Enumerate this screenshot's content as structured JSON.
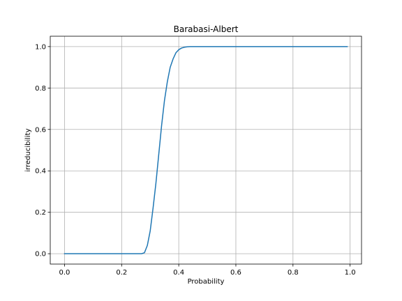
{
  "chart_data": {
    "type": "line",
    "title": "Barabasi-Albert",
    "xlabel": "Probability",
    "ylabel": "irreducibility",
    "xlim": [
      -0.05,
      1.04
    ],
    "ylim": [
      -0.05,
      1.05
    ],
    "xticks": [
      0.0,
      0.2,
      0.4,
      0.6,
      0.8,
      1.0
    ],
    "xtick_labels": [
      "0.0",
      "0.2",
      "0.4",
      "0.6",
      "0.8",
      "1.0"
    ],
    "yticks": [
      0.0,
      0.2,
      0.4,
      0.6,
      0.8,
      1.0
    ],
    "ytick_labels": [
      "0.0",
      "0.2",
      "0.4",
      "0.6",
      "0.8",
      "1.0"
    ],
    "grid": true,
    "series": [
      {
        "color": "#1f77b4",
        "x": [
          0.0,
          0.1,
          0.2,
          0.26,
          0.27,
          0.28,
          0.29,
          0.3,
          0.31,
          0.32,
          0.33,
          0.34,
          0.35,
          0.36,
          0.37,
          0.38,
          0.39,
          0.4,
          0.41,
          0.42,
          0.43,
          0.44,
          0.45,
          0.46,
          0.47,
          0.48,
          0.5,
          0.6,
          0.7,
          0.8,
          0.9,
          0.99
        ],
        "y": [
          0.0,
          0.0,
          0.0,
          0.0,
          0.0,
          0.005,
          0.04,
          0.11,
          0.22,
          0.34,
          0.48,
          0.62,
          0.74,
          0.83,
          0.9,
          0.94,
          0.97,
          0.985,
          0.993,
          0.997,
          0.999,
          1.0,
          1.0,
          1.0,
          1.0,
          1.0,
          1.0,
          1.0,
          1.0,
          1.0,
          1.0,
          1.0
        ]
      }
    ]
  }
}
